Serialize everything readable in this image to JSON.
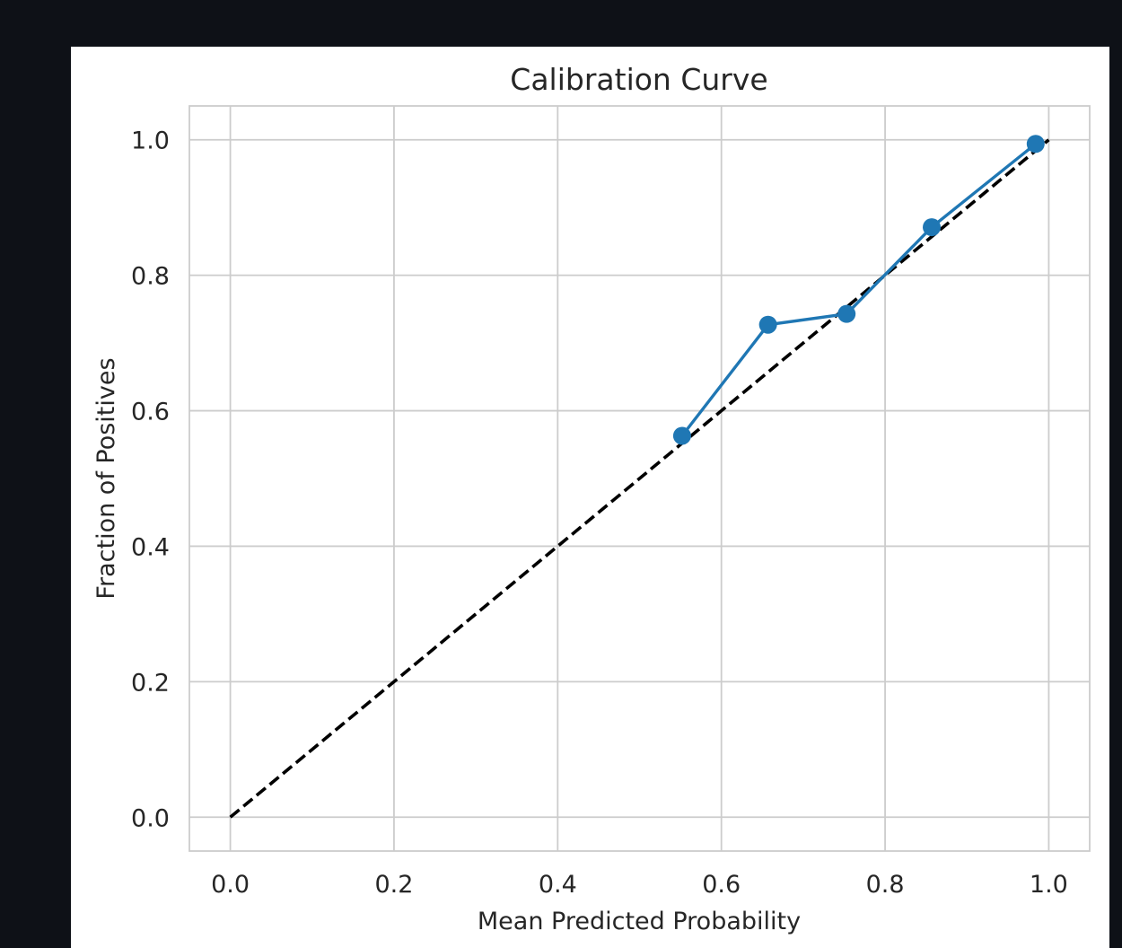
{
  "chart_data": {
    "type": "line",
    "title": "Calibration Curve",
    "xlabel": "Mean Predicted Probability",
    "ylabel": "Fraction of Positives",
    "xlim": [
      -0.05,
      1.05
    ],
    "ylim": [
      -0.05,
      1.05
    ],
    "xticks": [
      "0.0",
      "0.2",
      "0.4",
      "0.6",
      "0.8",
      "1.0"
    ],
    "yticks": [
      "0.0",
      "0.2",
      "0.4",
      "0.6",
      "0.8",
      "1.0"
    ],
    "grid": true,
    "series": [
      {
        "style": "line-marker",
        "color": "#1f77b4",
        "x": [
          0.552,
          0.657,
          0.753,
          0.857,
          0.984
        ],
        "y": [
          0.563,
          0.727,
          0.743,
          0.871,
          0.994
        ]
      },
      {
        "style": "dashed",
        "color": "#000000",
        "x": [
          0.0,
          1.0
        ],
        "y": [
          0.0,
          1.0
        ]
      }
    ]
  }
}
